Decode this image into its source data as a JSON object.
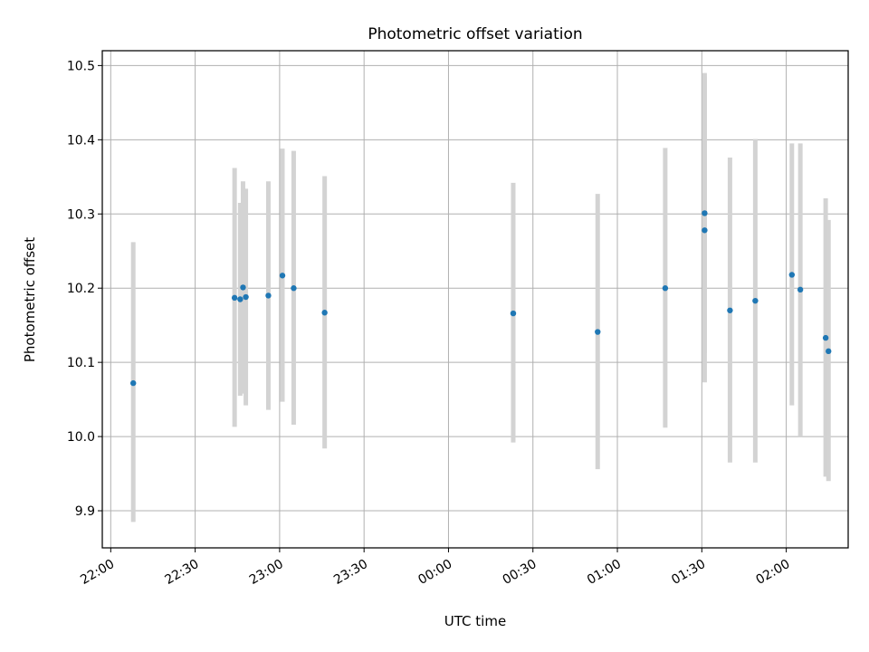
{
  "chart_data": {
    "type": "scatter",
    "title": "Photometric offset variation",
    "xlabel": "UTC time",
    "ylabel": "Photometric offset",
    "xlim": [
      "21:57",
      "02:22"
    ],
    "ylim": [
      9.85,
      10.52
    ],
    "x_ticks": [
      "22:00",
      "22:30",
      "23:00",
      "23:30",
      "00:00",
      "00:30",
      "01:00",
      "01:30",
      "02:00"
    ],
    "y_ticks": [
      9.9,
      10.0,
      10.1,
      10.2,
      10.3,
      10.4,
      10.5
    ],
    "grid": true,
    "colors": {
      "point": "#1f77b4",
      "errorbar": "#d3d3d3",
      "grid": "#b0b0b0"
    },
    "series": [
      {
        "points": [
          {
            "x": "22:08",
            "y": 10.072,
            "yerr": [
              9.885,
              10.262
            ]
          },
          {
            "x": "22:44",
            "y": 10.187,
            "yerr": [
              10.013,
              10.362
            ]
          },
          {
            "x": "22:46",
            "y": 10.185,
            "yerr": [
              10.055,
              10.315
            ]
          },
          {
            "x": "22:47",
            "y": 10.201,
            "yerr": [
              10.058,
              10.344
            ]
          },
          {
            "x": "22:48",
            "y": 10.188,
            "yerr": [
              10.042,
              10.334
            ]
          },
          {
            "x": "22:56",
            "y": 10.19,
            "yerr": [
              10.036,
              10.344
            ]
          },
          {
            "x": "23:01",
            "y": 10.217,
            "yerr": [
              10.047,
              10.388
            ]
          },
          {
            "x": "23:05",
            "y": 10.2,
            "yerr": [
              10.016,
              10.385
            ]
          },
          {
            "x": "23:16",
            "y": 10.167,
            "yerr": [
              9.984,
              10.351
            ]
          },
          {
            "x": "00:23",
            "y": 10.166,
            "yerr": [
              9.992,
              10.342
            ]
          },
          {
            "x": "00:53",
            "y": 10.141,
            "yerr": [
              9.956,
              10.327
            ]
          },
          {
            "x": "01:17",
            "y": 10.2,
            "yerr": [
              10.012,
              10.389
            ]
          },
          {
            "x": "01:31",
            "y": 10.301,
            "yerr": [
              10.112,
              10.49
            ]
          },
          {
            "x": "01:31",
            "y": 10.278,
            "yerr": [
              10.073,
              10.485
            ]
          },
          {
            "x": "01:40",
            "y": 10.17,
            "yerr": [
              9.965,
              10.376
            ]
          },
          {
            "x": "01:49",
            "y": 10.183,
            "yerr": [
              9.965,
              10.401
            ]
          },
          {
            "x": "02:02",
            "y": 10.218,
            "yerr": [
              10.042,
              10.395
            ]
          },
          {
            "x": "02:05",
            "y": 10.198,
            "yerr": [
              10.0,
              10.395
            ]
          },
          {
            "x": "02:14",
            "y": 10.133,
            "yerr": [
              9.946,
              10.321
            ]
          },
          {
            "x": "02:15",
            "y": 10.115,
            "yerr": [
              9.94,
              10.292
            ]
          }
        ]
      }
    ]
  }
}
